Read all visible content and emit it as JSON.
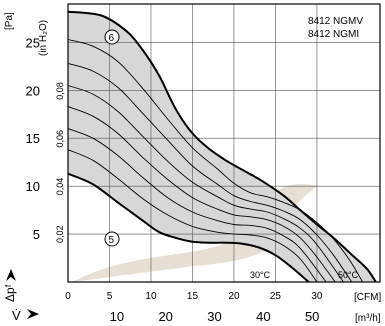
{
  "chart_data": {
    "type": "line",
    "models": [
      "8412 NGMV",
      "8412 NGMI"
    ],
    "units": {
      "pressure_pa": "[Pa]",
      "pressure_in": "(in H₂O)",
      "flow_cfm": "[CFM]",
      "flow_m3h": "[m³/h]"
    },
    "axis_symbols": {
      "y": "Δpᶠ",
      "x": "V̇"
    },
    "y_pa": {
      "range": [
        0,
        29
      ],
      "ticks": [
        5,
        10,
        15,
        20,
        25
      ]
    },
    "y_in": {
      "ticks": [
        0.02,
        0.04,
        0.06,
        0.08
      ],
      "labels": [
        "0,02",
        "0,04",
        "0,06",
        "0,08"
      ]
    },
    "x_cfm": {
      "range": [
        0,
        37.6
      ],
      "ticks": [
        0,
        5,
        10,
        15,
        20,
        25,
        30
      ]
    },
    "x_m3h": {
      "ticks": [
        10,
        20,
        30,
        40,
        50
      ]
    },
    "curve_labels": {
      "max": "6",
      "min": "5"
    },
    "temperature_labels": [
      "30°C",
      "50°C"
    ],
    "series": [
      {
        "name": "6",
        "x": [
          0,
          4,
          7,
          9,
          11,
          13,
          15,
          17,
          19,
          21,
          22.5,
          24,
          26,
          28,
          30,
          32,
          34,
          36,
          37.1
        ],
        "y": [
          28.2,
          27.8,
          26.2,
          24.2,
          21.5,
          18.0,
          15.5,
          13.9,
          12.7,
          11.7,
          11.0,
          10.2,
          9.0,
          7.5,
          6.0,
          4.6,
          3.0,
          1.4,
          0
        ]
      },
      {
        "name": "",
        "x": [
          0,
          3,
          6,
          9,
          12,
          15,
          18,
          20,
          22,
          24,
          26,
          28,
          30,
          32,
          34,
          35.5
        ],
        "y": [
          25.3,
          24.6,
          23.0,
          20.2,
          17.0,
          14.0,
          11.8,
          10.3,
          9.3,
          8.9,
          8.3,
          7.5,
          6.2,
          4.5,
          2.2,
          0
        ]
      },
      {
        "name": "",
        "x": [
          0,
          3,
          6,
          9,
          12,
          15,
          18,
          20,
          22,
          24,
          26,
          28,
          30,
          32,
          34.2
        ],
        "y": [
          22.8,
          22.0,
          20.3,
          17.6,
          14.8,
          12.1,
          10.2,
          9.0,
          8.4,
          8.0,
          7.4,
          6.5,
          4.9,
          2.8,
          0
        ]
      },
      {
        "name": "",
        "x": [
          0,
          3,
          6,
          9,
          12,
          15,
          18,
          20,
          22,
          24,
          26,
          28,
          30,
          33.2
        ],
        "y": [
          20.5,
          19.6,
          17.8,
          15.2,
          12.6,
          10.4,
          8.9,
          8.0,
          7.6,
          7.3,
          6.6,
          5.6,
          3.9,
          0
        ]
      },
      {
        "name": "",
        "x": [
          0,
          3,
          6,
          9,
          12,
          15,
          18,
          20,
          22,
          24,
          26,
          28,
          30,
          32.2
        ],
        "y": [
          18.3,
          17.3,
          15.5,
          13.0,
          10.7,
          8.8,
          7.6,
          7.0,
          6.8,
          6.5,
          5.8,
          4.6,
          2.6,
          0
        ]
      },
      {
        "name": "",
        "x": [
          0,
          3,
          6,
          9,
          12,
          15,
          18,
          20,
          22,
          24,
          26,
          28,
          31.1
        ],
        "y": [
          16.0,
          15.0,
          13.2,
          10.9,
          8.8,
          7.3,
          6.4,
          6.0,
          5.9,
          5.6,
          4.8,
          3.5,
          0
        ]
      },
      {
        "name": "",
        "x": [
          0,
          3,
          6,
          9,
          12,
          15,
          18,
          20,
          22,
          24,
          26,
          28,
          30.0
        ],
        "y": [
          13.8,
          12.7,
          10.8,
          8.7,
          7.0,
          5.8,
          5.2,
          5.0,
          4.9,
          4.6,
          3.8,
          2.4,
          0
        ]
      },
      {
        "name": "5",
        "x": [
          0,
          3,
          6,
          9,
          11,
          13,
          15,
          17,
          19,
          21,
          23,
          25,
          27,
          29.0
        ],
        "y": [
          11.3,
          10.2,
          8.3,
          6.4,
          5.2,
          4.6,
          4.2,
          4.1,
          4.1,
          4.0,
          3.6,
          2.8,
          1.5,
          0
        ]
      }
    ]
  }
}
